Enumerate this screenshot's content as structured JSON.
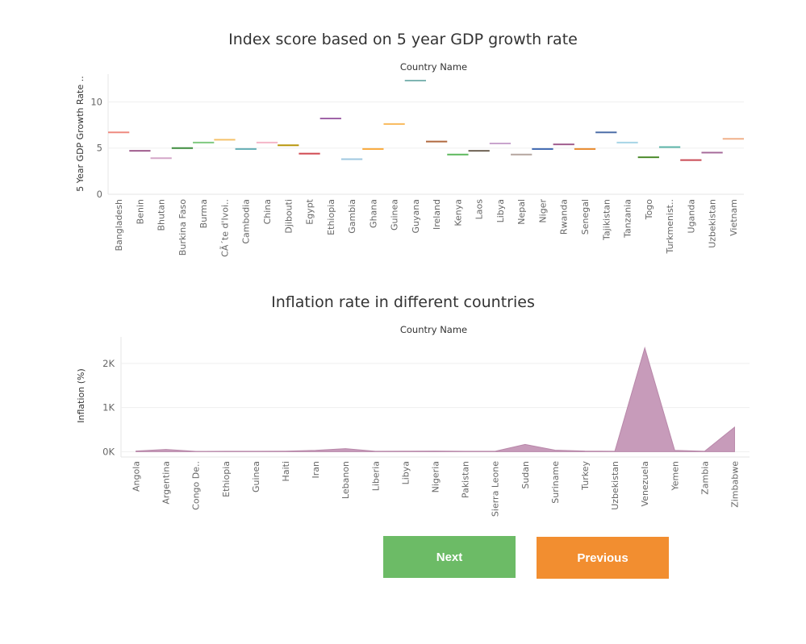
{
  "chart_data": [
    {
      "type": "line",
      "title": "Index score based on 5 year GDP growth rate",
      "header_label": "Country Name",
      "ylabel": "5 Year GDP Growth Rate ..",
      "ylim": [
        0,
        13
      ],
      "yticks": [
        0,
        5,
        10
      ],
      "grid": true,
      "categories": [
        "Bangladesh",
        "Benin",
        "Bhutan",
        "Burkina Faso",
        "Burma",
        "CÃ´te d'Ivoi..",
        "Cambodia",
        "China",
        "Djibouti",
        "Egypt",
        "Ethiopia",
        "Gambia",
        "Ghana",
        "Guinea",
        "Guyana",
        "Ireland",
        "Kenya",
        "Laos",
        "Libya",
        "Nepal",
        "Niger",
        "Rwanda",
        "Senegal",
        "Tajikistan",
        "Tanzania",
        "Togo",
        "Turkmenist..",
        "Uganda",
        "Uzbekistan",
        "Vietnam"
      ],
      "values": [
        6.7,
        4.7,
        3.9,
        5.0,
        5.6,
        5.9,
        4.9,
        5.6,
        5.3,
        4.4,
        8.2,
        3.8,
        4.9,
        7.6,
        12.3,
        5.7,
        4.3,
        4.7,
        5.5,
        4.3,
        4.9,
        5.4,
        4.9,
        6.7,
        5.6,
        4.0,
        5.1,
        3.7,
        4.5,
        6.0
      ],
      "colors": [
        "#ef8a80",
        "#a05d8e",
        "#d4a6c8",
        "#3d8b3d",
        "#7fc97f",
        "#f5c26b",
        "#62adb4",
        "#f4b6c8",
        "#b8960c",
        "#d0484f",
        "#a064a8",
        "#9fc8e0",
        "#f9a83a",
        "#f9b95b",
        "#7fb5b2",
        "#b0693f",
        "#5cb85c",
        "#6f6354",
        "#c9a4cd",
        "#b5a69f",
        "#3d66b0",
        "#a05d8e",
        "#e8892b",
        "#4e6fa8",
        "#a6d4e6",
        "#4c8b2b",
        "#5cb4a8",
        "#c94a54",
        "#a66b9a",
        "#f0b08a"
      ]
    },
    {
      "type": "area",
      "title": "Inflation rate in different countries",
      "header_label": "Country Name",
      "ylabel": "Inflation (%)",
      "ylim": [
        -120,
        2600
      ],
      "yticks": [
        0,
        1000,
        2000
      ],
      "ytick_labels": [
        "0K",
        "1K",
        "2K"
      ],
      "grid": true,
      "color": "#c79bba",
      "categories": [
        "Angola",
        "Argentina",
        "Congo De..",
        "Ethiopia",
        "Guinea",
        "Haiti",
        "Iran",
        "Lebanon",
        "Liberia",
        "Libya",
        "Nigeria",
        "Pakistan",
        "Sierra Leone",
        "Sudan",
        "Suriname",
        "Turkey",
        "Uzbekistan",
        "Venezuela",
        "Yemen",
        "Zambia",
        "Zimbabwe"
      ],
      "values": [
        15,
        50,
        8,
        10,
        10,
        13,
        30,
        70,
        10,
        12,
        15,
        10,
        10,
        165,
        35,
        15,
        10,
        2350,
        30,
        10,
        555
      ]
    }
  ],
  "buttons": {
    "next_label": "Next",
    "previous_label": "Previous",
    "next_color": "#6cbb66",
    "previous_color": "#f28e30"
  }
}
